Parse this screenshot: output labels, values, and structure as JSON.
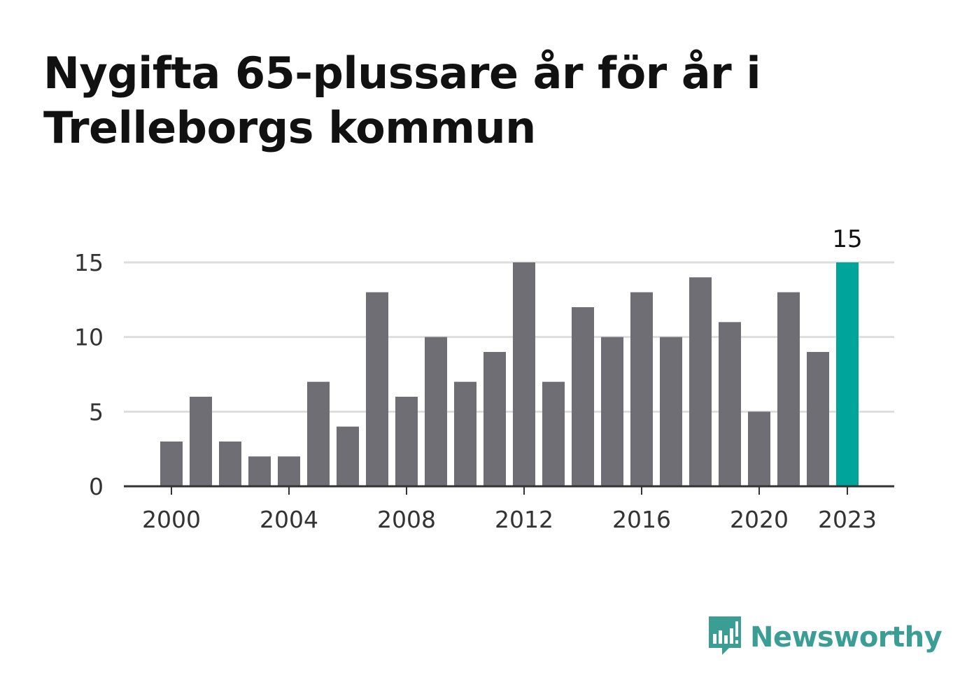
{
  "chart_data": {
    "type": "bar",
    "title": "Nygifta 65-plussare år för år i Trelleborgs kommun",
    "categories": [
      "2000",
      "2001",
      "2002",
      "2003",
      "2004",
      "2005",
      "2006",
      "2007",
      "2008",
      "2009",
      "2010",
      "2011",
      "2012",
      "2013",
      "2014",
      "2015",
      "2016",
      "2017",
      "2018",
      "2019",
      "2020",
      "2021",
      "2022",
      "2023"
    ],
    "values": [
      3,
      6,
      3,
      2,
      2,
      7,
      4,
      13,
      6,
      10,
      7,
      9,
      15,
      7,
      12,
      10,
      13,
      10,
      14,
      11,
      5,
      13,
      9,
      15
    ],
    "x_tick_labels": [
      "2000",
      "2004",
      "2008",
      "2012",
      "2016",
      "2020",
      "2023"
    ],
    "y_ticks": [
      0,
      5,
      10,
      15
    ],
    "ylim": [
      0,
      15
    ],
    "grid": true,
    "highlight": {
      "category": "2023",
      "label": "15"
    },
    "colors": {
      "bar": "#6f6e74",
      "highlight": "#00a499",
      "grid": "#dddddd",
      "axis": "#333333"
    }
  },
  "logo": {
    "text": "Newsworthy",
    "icon": "newsworthy-logo-icon",
    "color": "#3a9e95"
  }
}
